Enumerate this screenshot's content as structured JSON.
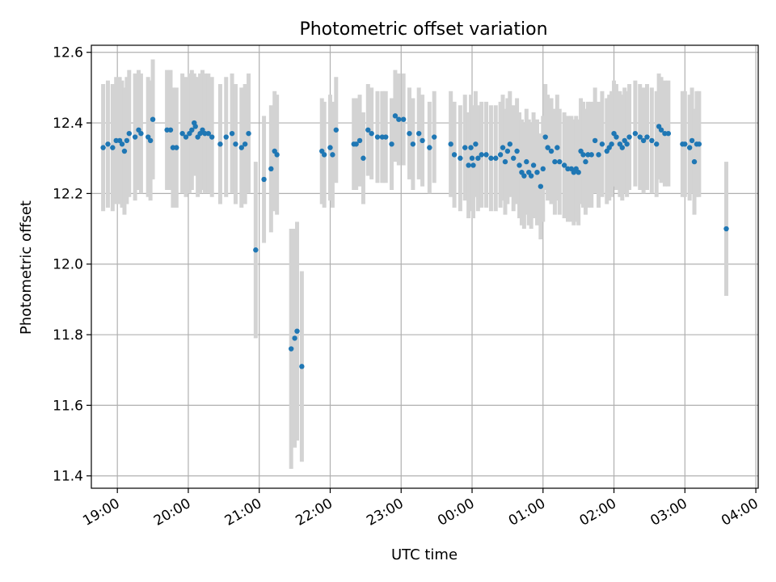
{
  "chart_data": {
    "type": "scatter",
    "title": "Photometric offset variation",
    "xlabel": "UTC time",
    "ylabel": "Photometric offset",
    "xlim": [
      "18:38",
      "04:02"
    ],
    "ylim": [
      11.365,
      12.62
    ],
    "x_ticks": [
      "19:00",
      "20:00",
      "21:00",
      "22:00",
      "23:00",
      "00:00",
      "01:00",
      "02:00",
      "03:00",
      "04:00"
    ],
    "y_ticks": [
      "11.4",
      "11.6",
      "11.8",
      "12.0",
      "12.2",
      "12.4",
      "12.6"
    ],
    "grid": true,
    "colors": {
      "point": "#1f77b4",
      "errorbar": "#d3d3d3",
      "grid": "#b0b0b0"
    },
    "series": [
      {
        "points": [
          {
            "t": "18:48",
            "y": 12.33,
            "e": 0.18
          },
          {
            "t": "18:52",
            "y": 12.34,
            "e": 0.18
          },
          {
            "t": "18:56",
            "y": 12.33,
            "e": 0.18
          },
          {
            "t": "18:59",
            "y": 12.35,
            "e": 0.18
          },
          {
            "t": "19:02",
            "y": 12.35,
            "e": 0.18
          },
          {
            "t": "19:04",
            "y": 12.34,
            "e": 0.18
          },
          {
            "t": "19:06",
            "y": 12.32,
            "e": 0.18
          },
          {
            "t": "19:08",
            "y": 12.35,
            "e": 0.18
          },
          {
            "t": "19:10",
            "y": 12.37,
            "e": 0.18
          },
          {
            "t": "19:15",
            "y": 12.36,
            "e": 0.18
          },
          {
            "t": "19:18",
            "y": 12.38,
            "e": 0.17
          },
          {
            "t": "19:20",
            "y": 12.37,
            "e": 0.17
          },
          {
            "t": "19:26",
            "y": 12.36,
            "e": 0.17
          },
          {
            "t": "19:28",
            "y": 12.35,
            "e": 0.17
          },
          {
            "t": "19:30",
            "y": 12.41,
            "e": 0.17
          },
          {
            "t": "19:42",
            "y": 12.38,
            "e": 0.17
          },
          {
            "t": "19:45",
            "y": 12.38,
            "e": 0.17
          },
          {
            "t": "19:47",
            "y": 12.33,
            "e": 0.17
          },
          {
            "t": "19:50",
            "y": 12.33,
            "e": 0.17
          },
          {
            "t": "19:55",
            "y": 12.37,
            "e": 0.17
          },
          {
            "t": "19:58",
            "y": 12.36,
            "e": 0.17
          },
          {
            "t": "20:01",
            "y": 12.37,
            "e": 0.17
          },
          {
            "t": "20:03",
            "y": 12.38,
            "e": 0.17
          },
          {
            "t": "20:05",
            "y": 12.4,
            "e": 0.14
          },
          {
            "t": "20:06",
            "y": 12.39,
            "e": 0.14
          },
          {
            "t": "20:08",
            "y": 12.36,
            "e": 0.17
          },
          {
            "t": "20:10",
            "y": 12.37,
            "e": 0.17
          },
          {
            "t": "20:12",
            "y": 12.38,
            "e": 0.17
          },
          {
            "t": "20:14",
            "y": 12.37,
            "e": 0.17
          },
          {
            "t": "20:17",
            "y": 12.37,
            "e": 0.17
          },
          {
            "t": "20:20",
            "y": 12.36,
            "e": 0.17
          },
          {
            "t": "20:27",
            "y": 12.34,
            "e": 0.17
          },
          {
            "t": "20:32",
            "y": 12.36,
            "e": 0.17
          },
          {
            "t": "20:37",
            "y": 12.37,
            "e": 0.17
          },
          {
            "t": "20:40",
            "y": 12.34,
            "e": 0.17
          },
          {
            "t": "20:45",
            "y": 12.33,
            "e": 0.17
          },
          {
            "t": "20:48",
            "y": 12.34,
            "e": 0.17
          },
          {
            "t": "20:51",
            "y": 12.37,
            "e": 0.17
          },
          {
            "t": "20:57",
            "y": 12.04,
            "e": 0.25
          },
          {
            "t": "21:04",
            "y": 12.24,
            "e": 0.18
          },
          {
            "t": "21:10",
            "y": 12.27,
            "e": 0.18
          },
          {
            "t": "21:13",
            "y": 12.32,
            "e": 0.17
          },
          {
            "t": "21:15",
            "y": 12.31,
            "e": 0.17
          },
          {
            "t": "21:27",
            "y": 11.76,
            "e": 0.34
          },
          {
            "t": "21:30",
            "y": 11.79,
            "e": 0.31
          },
          {
            "t": "21:32",
            "y": 11.81,
            "e": 0.31
          },
          {
            "t": "21:36",
            "y": 11.71,
            "e": 0.27
          },
          {
            "t": "21:53",
            "y": 12.32,
            "e": 0.15
          },
          {
            "t": "21:55",
            "y": 12.31,
            "e": 0.15
          },
          {
            "t": "22:00",
            "y": 12.33,
            "e": 0.15
          },
          {
            "t": "22:02",
            "y": 12.31,
            "e": 0.15
          },
          {
            "t": "22:05",
            "y": 12.38,
            "e": 0.15
          },
          {
            "t": "22:20",
            "y": 12.34,
            "e": 0.13
          },
          {
            "t": "22:22",
            "y": 12.34,
            "e": 0.13
          },
          {
            "t": "22:25",
            "y": 12.35,
            "e": 0.13
          },
          {
            "t": "22:28",
            "y": 12.3,
            "e": 0.13
          },
          {
            "t": "22:32",
            "y": 12.38,
            "e": 0.13
          },
          {
            "t": "22:35",
            "y": 12.37,
            "e": 0.13
          },
          {
            "t": "22:40",
            "y": 12.36,
            "e": 0.13
          },
          {
            "t": "22:44",
            "y": 12.36,
            "e": 0.13
          },
          {
            "t": "22:47",
            "y": 12.36,
            "e": 0.13
          },
          {
            "t": "22:52",
            "y": 12.34,
            "e": 0.13
          },
          {
            "t": "22:55",
            "y": 12.42,
            "e": 0.13
          },
          {
            "t": "22:58",
            "y": 12.41,
            "e": 0.13
          },
          {
            "t": "23:02",
            "y": 12.41,
            "e": 0.13
          },
          {
            "t": "23:07",
            "y": 12.37,
            "e": 0.13
          },
          {
            "t": "23:10",
            "y": 12.34,
            "e": 0.13
          },
          {
            "t": "23:15",
            "y": 12.37,
            "e": 0.13
          },
          {
            "t": "23:18",
            "y": 12.35,
            "e": 0.13
          },
          {
            "t": "23:24",
            "y": 12.33,
            "e": 0.13
          },
          {
            "t": "23:28",
            "y": 12.36,
            "e": 0.13
          },
          {
            "t": "23:42",
            "y": 12.34,
            "e": 0.15
          },
          {
            "t": "23:45",
            "y": 12.31,
            "e": 0.15
          },
          {
            "t": "23:50",
            "y": 12.3,
            "e": 0.15
          },
          {
            "t": "23:54",
            "y": 12.33,
            "e": 0.15
          },
          {
            "t": "23:57",
            "y": 12.28,
            "e": 0.15
          },
          {
            "t": "23:59",
            "y": 12.33,
            "e": 0.15
          },
          {
            "t": "00:00",
            "y": 12.3,
            "e": 0.15
          },
          {
            "t": "00:01",
            "y": 12.28,
            "e": 0.15
          },
          {
            "t": "00:03",
            "y": 12.34,
            "e": 0.15
          },
          {
            "t": "00:05",
            "y": 12.3,
            "e": 0.15
          },
          {
            "t": "00:08",
            "y": 12.31,
            "e": 0.15
          },
          {
            "t": "00:12",
            "y": 12.31,
            "e": 0.15
          },
          {
            "t": "00:16",
            "y": 12.3,
            "e": 0.15
          },
          {
            "t": "00:20",
            "y": 12.3,
            "e": 0.15
          },
          {
            "t": "00:24",
            "y": 12.31,
            "e": 0.15
          },
          {
            "t": "00:26",
            "y": 12.33,
            "e": 0.15
          },
          {
            "t": "00:28",
            "y": 12.29,
            "e": 0.15
          },
          {
            "t": "00:30",
            "y": 12.32,
            "e": 0.15
          },
          {
            "t": "00:32",
            "y": 12.34,
            "e": 0.15
          },
          {
            "t": "00:35",
            "y": 12.3,
            "e": 0.15
          },
          {
            "t": "00:38",
            "y": 12.32,
            "e": 0.15
          },
          {
            "t": "00:40",
            "y": 12.28,
            "e": 0.15
          },
          {
            "t": "00:42",
            "y": 12.26,
            "e": 0.15
          },
          {
            "t": "00:44",
            "y": 12.25,
            "e": 0.15
          },
          {
            "t": "00:46",
            "y": 12.29,
            "e": 0.15
          },
          {
            "t": "00:48",
            "y": 12.26,
            "e": 0.15
          },
          {
            "t": "00:50",
            "y": 12.25,
            "e": 0.15
          },
          {
            "t": "00:52",
            "y": 12.28,
            "e": 0.15
          },
          {
            "t": "00:55",
            "y": 12.26,
            "e": 0.15
          },
          {
            "t": "00:58",
            "y": 12.22,
            "e": 0.15
          },
          {
            "t": "01:00",
            "y": 12.27,
            "e": 0.15
          },
          {
            "t": "01:02",
            "y": 12.36,
            "e": 0.15
          },
          {
            "t": "01:04",
            "y": 12.33,
            "e": 0.15
          },
          {
            "t": "01:07",
            "y": 12.32,
            "e": 0.15
          },
          {
            "t": "01:10",
            "y": 12.29,
            "e": 0.15
          },
          {
            "t": "01:12",
            "y": 12.33,
            "e": 0.15
          },
          {
            "t": "01:14",
            "y": 12.29,
            "e": 0.15
          },
          {
            "t": "01:18",
            "y": 12.28,
            "e": 0.15
          },
          {
            "t": "01:21",
            "y": 12.27,
            "e": 0.15
          },
          {
            "t": "01:24",
            "y": 12.27,
            "e": 0.15
          },
          {
            "t": "01:26",
            "y": 12.26,
            "e": 0.15
          },
          {
            "t": "01:28",
            "y": 12.27,
            "e": 0.15
          },
          {
            "t": "01:30",
            "y": 12.26,
            "e": 0.15
          },
          {
            "t": "01:32",
            "y": 12.32,
            "e": 0.15
          },
          {
            "t": "01:34",
            "y": 12.31,
            "e": 0.15
          },
          {
            "t": "01:36",
            "y": 12.29,
            "e": 0.15
          },
          {
            "t": "01:38",
            "y": 12.31,
            "e": 0.15
          },
          {
            "t": "01:41",
            "y": 12.31,
            "e": 0.15
          },
          {
            "t": "01:44",
            "y": 12.35,
            "e": 0.15
          },
          {
            "t": "01:47",
            "y": 12.31,
            "e": 0.15
          },
          {
            "t": "01:50",
            "y": 12.34,
            "e": 0.15
          },
          {
            "t": "01:54",
            "y": 12.32,
            "e": 0.15
          },
          {
            "t": "01:56",
            "y": 12.33,
            "e": 0.15
          },
          {
            "t": "01:58",
            "y": 12.34,
            "e": 0.15
          },
          {
            "t": "02:00",
            "y": 12.37,
            "e": 0.15
          },
          {
            "t": "02:02",
            "y": 12.36,
            "e": 0.15
          },
          {
            "t": "02:05",
            "y": 12.34,
            "e": 0.15
          },
          {
            "t": "02:07",
            "y": 12.33,
            "e": 0.15
          },
          {
            "t": "02:09",
            "y": 12.35,
            "e": 0.15
          },
          {
            "t": "02:11",
            "y": 12.34,
            "e": 0.15
          },
          {
            "t": "02:13",
            "y": 12.36,
            "e": 0.15
          },
          {
            "t": "02:18",
            "y": 12.37,
            "e": 0.15
          },
          {
            "t": "02:22",
            "y": 12.36,
            "e": 0.15
          },
          {
            "t": "02:25",
            "y": 12.35,
            "e": 0.15
          },
          {
            "t": "02:28",
            "y": 12.36,
            "e": 0.15
          },
          {
            "t": "02:32",
            "y": 12.35,
            "e": 0.15
          },
          {
            "t": "02:36",
            "y": 12.34,
            "e": 0.15
          },
          {
            "t": "02:38",
            "y": 12.39,
            "e": 0.15
          },
          {
            "t": "02:40",
            "y": 12.38,
            "e": 0.15
          },
          {
            "t": "02:43",
            "y": 12.37,
            "e": 0.15
          },
          {
            "t": "02:46",
            "y": 12.37,
            "e": 0.15
          },
          {
            "t": "02:58",
            "y": 12.34,
            "e": 0.15
          },
          {
            "t": "03:00",
            "y": 12.34,
            "e": 0.15
          },
          {
            "t": "03:04",
            "y": 12.33,
            "e": 0.15
          },
          {
            "t": "03:06",
            "y": 12.35,
            "e": 0.15
          },
          {
            "t": "03:08",
            "y": 12.29,
            "e": 0.15
          },
          {
            "t": "03:10",
            "y": 12.34,
            "e": 0.15
          },
          {
            "t": "03:12",
            "y": 12.34,
            "e": 0.15
          },
          {
            "t": "03:35",
            "y": 12.1,
            "e": 0.19
          }
        ]
      }
    ]
  }
}
